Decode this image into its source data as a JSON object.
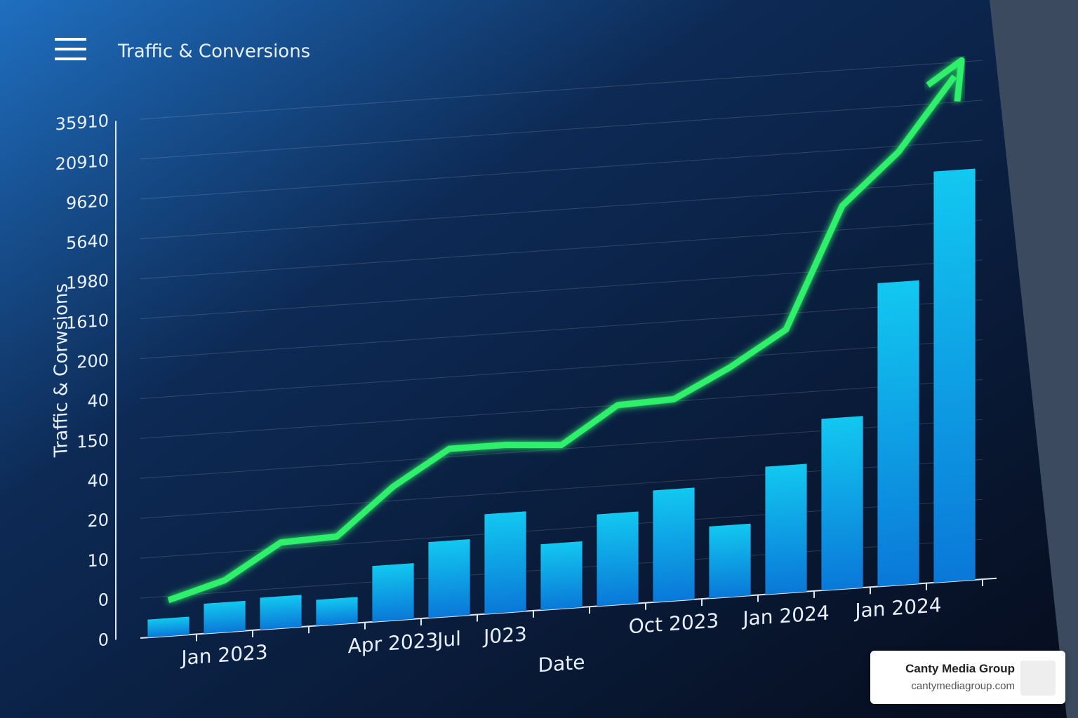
{
  "chart_data": {
    "type": "bar-line",
    "title": "Traffic & Conversions",
    "y_label": "Traffic & Corwsions",
    "x_label": "Date",
    "categories": [
      null,
      "Jan 2023",
      null,
      null,
      "Apr 2023",
      "Jul",
      "J023",
      null,
      null,
      "Oct 2023",
      null,
      "Jan 2024",
      null,
      "Jan 2024",
      null
    ],
    "series": [
      {
        "type": "bar",
        "color": "#0aa8e8",
        "values": [
          0.45,
          0.75,
          0.8,
          0.65,
          1.4,
          1.9,
          2.5,
          1.65,
          2.3,
          2.8,
          1.8,
          3.2,
          4.3,
          7.6,
          10.3
        ]
      },
      {
        "type": "line",
        "color": "#2ef06a",
        "values": [
          0.9,
          1.3,
          2.15,
          2.2,
          3.35,
          4.2,
          4.2,
          4.1,
          5.0,
          5.05,
          5.75,
          6.6,
          9.6,
          10.85,
          12.65
        ]
      }
    ],
    "ylim": [
      0,
      13
    ],
    "yticks": [
      {
        "value": 0,
        "label": "0"
      },
      {
        "value": 1,
        "label": "0"
      },
      {
        "value": 2,
        "label": "10"
      },
      {
        "value": 3,
        "label": "20"
      },
      {
        "value": 4,
        "label": "40"
      },
      {
        "value": 5,
        "label": "150"
      },
      {
        "value": 6,
        "label": "40"
      },
      {
        "value": 7,
        "label": "200"
      },
      {
        "value": 8,
        "label": "1610"
      },
      {
        "value": 9,
        "label": "1980"
      },
      {
        "value": 10,
        "label": "5640"
      },
      {
        "value": 11,
        "label": "9620"
      },
      {
        "value": 12,
        "label": "20910"
      },
      {
        "value": 13,
        "label": "35910"
      }
    ],
    "grid": true
  },
  "badge": {
    "name": "Canty Media Group",
    "url": "cantymediagroup.com"
  }
}
